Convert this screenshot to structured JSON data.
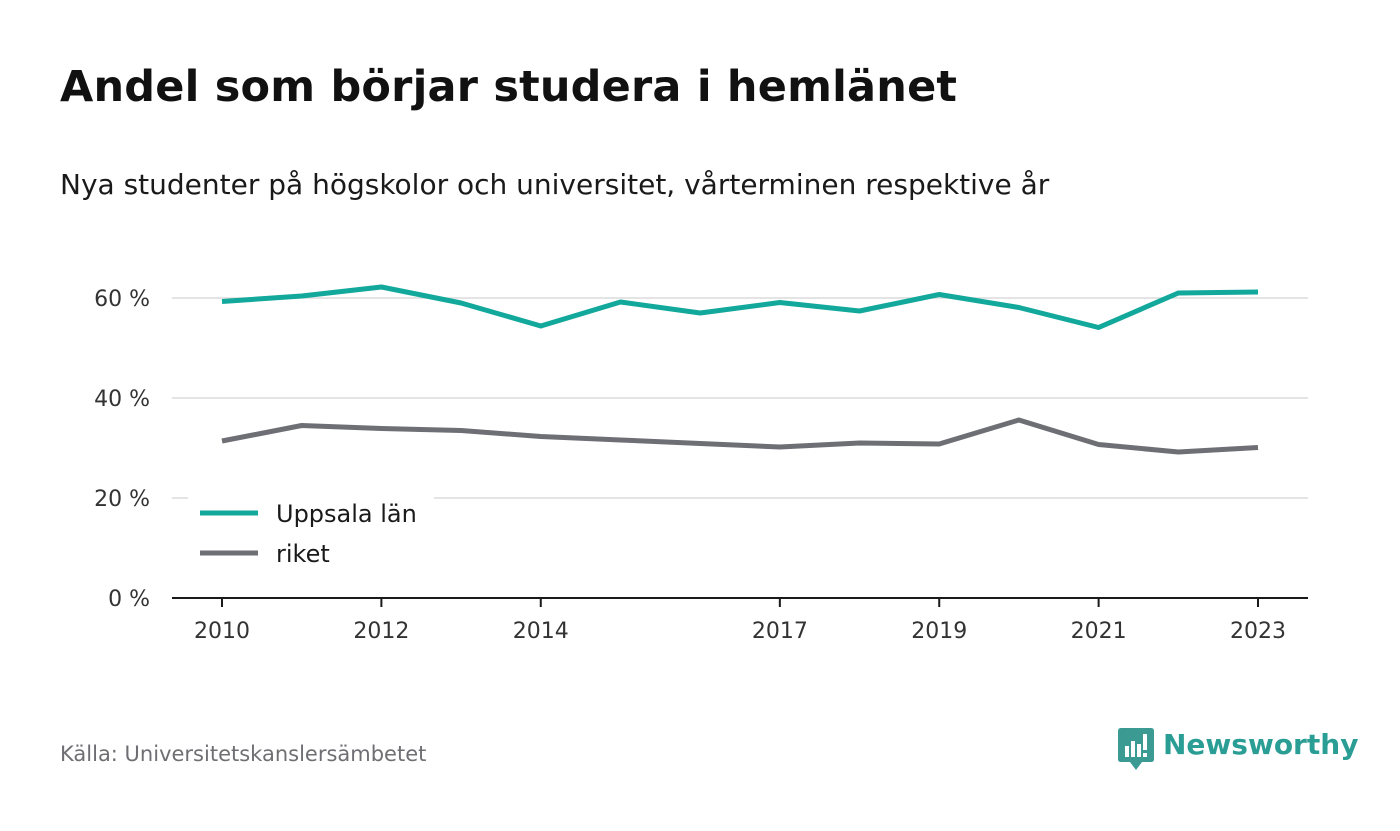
{
  "title": "Andel som börjar studera i hemlänet",
  "subtitle": "Nya studenter på högskolor och universitet, vårterminen respektive år",
  "source": "Källa: Universitetskanslersämbetet",
  "brand": {
    "name": "Newsworthy",
    "icon": "newsworthy-logo-icon",
    "color": "#2a9d94"
  },
  "chart_data": {
    "type": "line",
    "title": "",
    "xlabel": "",
    "ylabel": "",
    "x": [
      2010,
      2011,
      2012,
      2013,
      2014,
      2015,
      2016,
      2017,
      2018,
      2019,
      2020,
      2021,
      2022,
      2023
    ],
    "xticks": [
      2010,
      2012,
      2014,
      2017,
      2019,
      2021,
      2023
    ],
    "xtick_labels": [
      "2010",
      "2012",
      "2014",
      "2017",
      "2019",
      "2021",
      "2023"
    ],
    "ylim": [
      0,
      70
    ],
    "yticks": [
      0,
      20,
      40,
      60
    ],
    "ytick_labels": [
      "0 %",
      "20 %",
      "40 %",
      "60 %"
    ],
    "grid": true,
    "legend_position": "bottom-left",
    "series": [
      {
        "name": "Uppsala län",
        "color": "#12a89b",
        "values": [
          59.3,
          60.4,
          62.2,
          59.0,
          54.4,
          59.2,
          57.0,
          59.1,
          57.4,
          60.7,
          58.1,
          54.1,
          61.0,
          61.2
        ]
      },
      {
        "name": "riket",
        "color": "#6e6e75",
        "values": [
          31.4,
          34.5,
          33.9,
          33.5,
          32.3,
          31.6,
          30.9,
          30.2,
          31.0,
          30.8,
          35.6,
          30.7,
          29.2,
          30.1
        ]
      }
    ]
  }
}
